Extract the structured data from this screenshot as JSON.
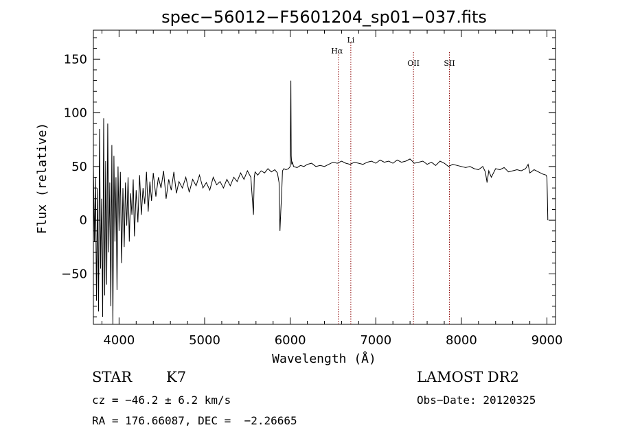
{
  "chart_data": {
    "type": "line",
    "title": "spec−56012−F5601204_sp01−037.fits",
    "xlabel": "Wavelength (Å)",
    "ylabel": "Flux (relative)",
    "xlim": [
      3700,
      9100
    ],
    "ylim": [
      -97,
      177
    ],
    "xticks": [
      4000,
      5000,
      6000,
      7000,
      8000,
      9000
    ],
    "xtick_labels": [
      "4000",
      "5000",
      "6000",
      "7000",
      "8000",
      "9000"
    ],
    "yticks": [
      -50,
      0,
      50,
      100,
      150
    ],
    "ytick_labels": [
      "−50",
      "0",
      "50",
      "100",
      "150"
    ],
    "grid": false,
    "series": [
      {
        "color": "#000000",
        "x": [
          3700,
          3712,
          3724,
          3736,
          3748,
          3760,
          3772,
          3784,
          3796,
          3808,
          3820,
          3832,
          3844,
          3856,
          3868,
          3880,
          3892,
          3904,
          3916,
          3928,
          3940,
          3952,
          3964,
          3976,
          3988,
          4000,
          4015,
          4030,
          4045,
          4060,
          4075,
          4090,
          4105,
          4120,
          4135,
          4150,
          4165,
          4180,
          4200,
          4220,
          4240,
          4260,
          4280,
          4300,
          4320,
          4340,
          4360,
          4380,
          4400,
          4430,
          4460,
          4490,
          4520,
          4550,
          4580,
          4610,
          4640,
          4670,
          4700,
          4740,
          4780,
          4820,
          4860,
          4900,
          4940,
          4980,
          5020,
          5060,
          5100,
          5140,
          5180,
          5220,
          5260,
          5300,
          5340,
          5380,
          5420,
          5460,
          5500,
          5540,
          5570,
          5580,
          5590,
          5620,
          5660,
          5700,
          5740,
          5780,
          5820,
          5850,
          5870,
          5880,
          5890,
          5900,
          5910,
          5925,
          5950,
          5980,
          6000,
          6008,
          6012,
          6018,
          6025,
          6040,
          6080,
          6120,
          6160,
          6200,
          6250,
          6300,
          6350,
          6400,
          6450,
          6500,
          6550,
          6600,
          6650,
          6700,
          6750,
          6800,
          6850,
          6900,
          6950,
          7000,
          7050,
          7100,
          7150,
          7200,
          7250,
          7300,
          7350,
          7400,
          7450,
          7500,
          7550,
          7600,
          7650,
          7700,
          7750,
          7800,
          7850,
          7900,
          7950,
          8000,
          8050,
          8100,
          8150,
          8200,
          8250,
          8280,
          8300,
          8320,
          8350,
          8400,
          8450,
          8500,
          8550,
          8600,
          8650,
          8700,
          8750,
          8780,
          8800,
          8850,
          8900,
          8950,
          8990,
          9000,
          9005,
          9010
        ],
        "y": [
          50,
          -20,
          40,
          -75,
          30,
          -85,
          85,
          -45,
          20,
          -90,
          95,
          -70,
          55,
          -60,
          90,
          -30,
          35,
          -80,
          70,
          -97,
          60,
          -20,
          40,
          -65,
          50,
          -10,
          45,
          -40,
          30,
          -25,
          35,
          -5,
          40,
          -20,
          25,
          5,
          38,
          -15,
          28,
          -2,
          42,
          5,
          30,
          15,
          45,
          8,
          36,
          18,
          44,
          22,
          40,
          30,
          46,
          20,
          38,
          28,
          45,
          25,
          36,
          30,
          40,
          26,
          38,
          32,
          42,
          30,
          35,
          28,
          40,
          33,
          36,
          30,
          38,
          32,
          40,
          36,
          44,
          38,
          46,
          40,
          5,
          40,
          45,
          42,
          46,
          44,
          48,
          45,
          47,
          44,
          35,
          -10,
          8,
          25,
          46,
          48,
          47,
          48,
          50,
          130,
          60,
          52,
          54,
          50,
          49,
          51,
          50,
          52,
          53,
          50,
          51,
          50,
          52,
          54,
          53,
          55,
          53,
          52,
          54,
          53,
          52,
          54,
          55,
          53,
          56,
          54,
          55,
          53,
          56,
          54,
          55,
          57,
          53,
          54,
          55,
          52,
          54,
          51,
          55,
          53,
          50,
          52,
          51,
          50,
          49,
          50,
          48,
          47,
          50,
          45,
          35,
          46,
          40,
          48,
          47,
          49,
          45,
          46,
          47,
          46,
          48,
          52,
          44,
          47,
          45,
          43,
          42,
          40,
          20,
          0
        ]
      }
    ],
    "annotations": [
      {
        "label": "Hα",
        "x": 6563
      },
      {
        "label": "Li",
        "x": 6708
      },
      {
        "label": "OII",
        "x": 7440
      },
      {
        "label": "SII",
        "x": 7860
      }
    ]
  },
  "info": {
    "obj_class": "STAR",
    "subclass": "K7",
    "cz_line": "cz = −46.2 ± 6.2 km/s",
    "radec_line": "RA = 176.66087, DEC =  −2.26665",
    "survey": "LAMOST DR2",
    "obs_date": "Obs−Date: 20120325"
  },
  "colors": {
    "line_markers": "#8b0000",
    "spectrum": "#000000"
  }
}
